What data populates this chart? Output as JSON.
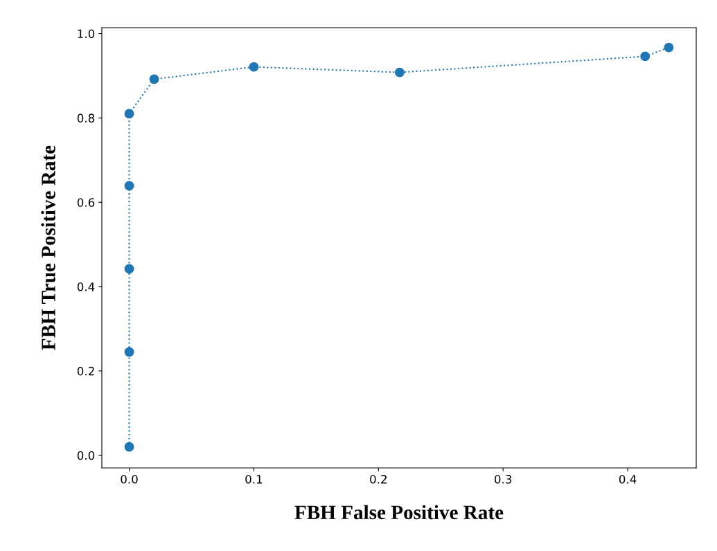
{
  "chart_data": {
    "type": "line",
    "xlabel": "FBH False Positive Rate",
    "ylabel": "FBH True Positive Rate",
    "x": [
      0,
      0,
      0,
      0,
      0,
      0.02,
      0.1,
      0.217,
      0.414,
      0.433
    ],
    "series": [
      {
        "color": "#1f77b4",
        "values": [
          0.02,
          0.245,
          0.442,
          0.639,
          0.81,
          0.892,
          0.921,
          0.908,
          0.946,
          0.967
        ]
      }
    ],
    "xlim": [
      -0.022,
      0.455
    ],
    "ylim": [
      -0.03,
      1.014
    ],
    "xticks": [
      {
        "value": 0,
        "label": "0.0"
      },
      0.1,
      0.2,
      0.3,
      0.4
    ],
    "yticks": [
      {
        "value": 0,
        "label": "0.0"
      },
      0.2,
      0.4,
      0.6,
      0.8,
      {
        "value": 1,
        "label": "1.0"
      }
    ],
    "marker": "circle",
    "line_style": "dotted",
    "grid": false,
    "legend": false
  }
}
